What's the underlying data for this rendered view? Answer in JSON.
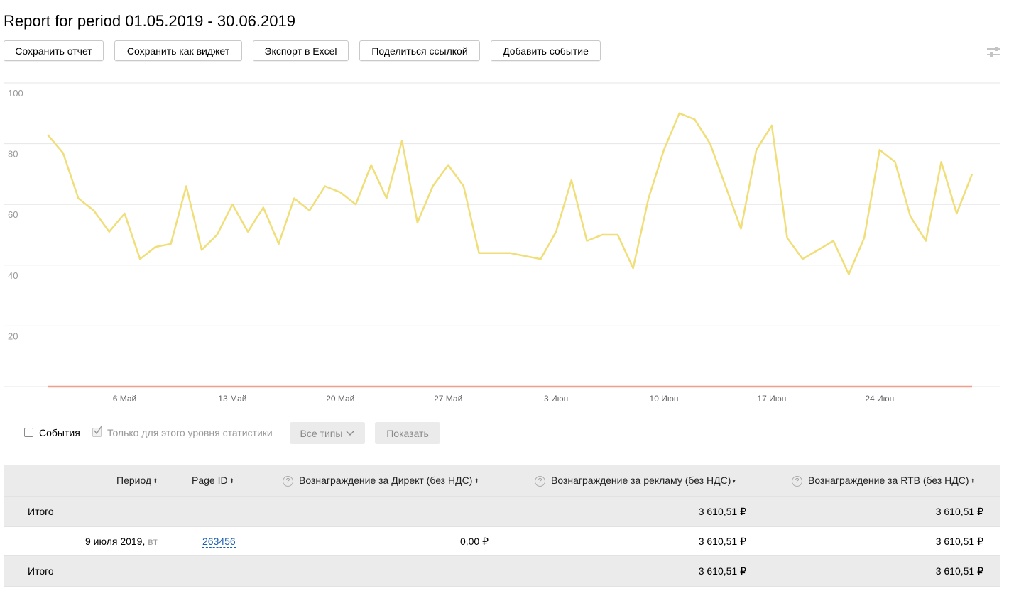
{
  "report": {
    "title": "Report for period 01.05.2019 - 30.06.2019"
  },
  "toolbar": {
    "save_report": "Сохранить отчет",
    "save_widget": "Сохранить как виджет",
    "export_excel": "Экспорт в Excel",
    "share_link": "Поделиться ссылкой",
    "add_event": "Добавить событие",
    "settings_icon": "sliders-icon"
  },
  "chart_data": {
    "type": "line",
    "title": "",
    "xlabel": "",
    "ylabel": "",
    "ylim": [
      0,
      100
    ],
    "yticks": [
      "100",
      "80",
      "60",
      "40",
      "20"
    ],
    "xtick_labels": [
      "6 Май",
      "13 Май",
      "20 Май",
      "27 Май",
      "3 Июн",
      "10 Июн",
      "17 Июн",
      "24 Июн"
    ],
    "x": [
      "2019-05-01",
      "2019-05-02",
      "2019-05-03",
      "2019-05-04",
      "2019-05-05",
      "2019-05-06",
      "2019-05-07",
      "2019-05-08",
      "2019-05-09",
      "2019-05-10",
      "2019-05-11",
      "2019-05-12",
      "2019-05-13",
      "2019-05-14",
      "2019-05-15",
      "2019-05-16",
      "2019-05-17",
      "2019-05-18",
      "2019-05-19",
      "2019-05-20",
      "2019-05-21",
      "2019-05-22",
      "2019-05-23",
      "2019-05-24",
      "2019-05-25",
      "2019-05-26",
      "2019-05-27",
      "2019-05-28",
      "2019-05-29",
      "2019-05-30",
      "2019-05-31",
      "2019-06-01",
      "2019-06-02",
      "2019-06-03",
      "2019-06-04",
      "2019-06-05",
      "2019-06-06",
      "2019-06-07",
      "2019-06-08",
      "2019-06-09",
      "2019-06-10",
      "2019-06-11",
      "2019-06-12",
      "2019-06-13",
      "2019-06-14",
      "2019-06-15",
      "2019-06-16",
      "2019-06-17",
      "2019-06-18",
      "2019-06-19",
      "2019-06-20",
      "2019-06-21",
      "2019-06-22",
      "2019-06-23",
      "2019-06-24",
      "2019-06-25",
      "2019-06-26",
      "2019-06-27",
      "2019-06-28",
      "2019-06-29",
      "2019-06-30"
    ],
    "series": [
      {
        "color": "#f0de78",
        "values": [
          83,
          77,
          62,
          58,
          51,
          57,
          42,
          46,
          47,
          66,
          45,
          50,
          60,
          51,
          59,
          47,
          62,
          58,
          66,
          64,
          60,
          73,
          62,
          81,
          54,
          66,
          73,
          66,
          44,
          44,
          44,
          43,
          42,
          51,
          68,
          48,
          50,
          50,
          39,
          62,
          78,
          90,
          88,
          80,
          66,
          52,
          78,
          86,
          49,
          42,
          45,
          48,
          37,
          49,
          78,
          74,
          56,
          48,
          74,
          57,
          70
        ]
      },
      {
        "color": "#f29e8c",
        "values": [
          0,
          0,
          0,
          0,
          0,
          0,
          0,
          0,
          0,
          0,
          0,
          0,
          0,
          0,
          0,
          0,
          0,
          0,
          0,
          0,
          0,
          0,
          0,
          0,
          0,
          0,
          0,
          0,
          0,
          0,
          0,
          0,
          0,
          0,
          0,
          0,
          0,
          0,
          0,
          0,
          0,
          0,
          0,
          0,
          0,
          0,
          0,
          0,
          0,
          0,
          0,
          0,
          0,
          0,
          0,
          0,
          0,
          0,
          0,
          0,
          0
        ]
      }
    ],
    "grid": true
  },
  "filters": {
    "events_label": "События",
    "only_level_label": "Только для этого уровня статистики",
    "all_types": "Все типы",
    "show": "Показать",
    "chevron_icon": "chevron-down-icon"
  },
  "table": {
    "headers": {
      "period": "Период",
      "page_id": "Page ID",
      "direct": "Вознаграждение за Директ (без НДС)",
      "ads": "Вознаграждение за рекламу (без НДС)",
      "rtb": "Вознаграждение за RTB (без НДС)"
    },
    "sort_icons": {
      "both": "⬍",
      "desc": "▾"
    },
    "total_top": {
      "label": "Итого",
      "ads": "3 610,51 ₽",
      "rtb": "3 610,51 ₽"
    },
    "row": {
      "date": "9 июля 2019,",
      "weekday": "вт",
      "page_id": "263456",
      "direct": "0,00 ₽",
      "ads": "3 610,51 ₽",
      "rtb": "3 610,51 ₽"
    },
    "total_bottom": {
      "label": "Итого",
      "ads": "3 610,51 ₽",
      "rtb": "3 610,51 ₽"
    }
  }
}
